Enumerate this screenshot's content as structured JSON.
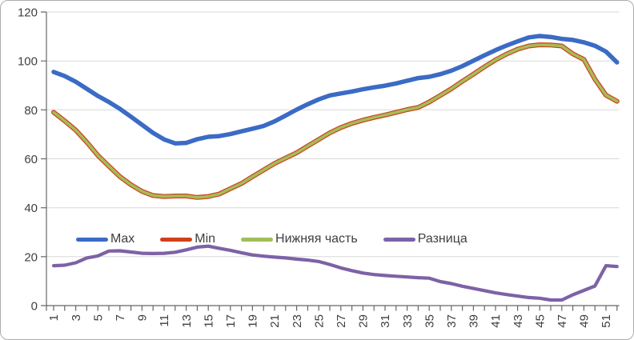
{
  "chart_data": {
    "type": "line",
    "x": [
      1,
      2,
      3,
      4,
      5,
      6,
      7,
      8,
      9,
      10,
      11,
      12,
      13,
      14,
      15,
      16,
      17,
      18,
      19,
      20,
      21,
      22,
      23,
      24,
      25,
      26,
      27,
      28,
      29,
      30,
      31,
      32,
      33,
      34,
      35,
      36,
      37,
      38,
      39,
      40,
      41,
      42,
      43,
      44,
      45,
      46,
      47,
      48,
      49,
      50,
      51,
      52
    ],
    "x_tick_labels": [
      "1",
      "3",
      "5",
      "7",
      "9",
      "11",
      "13",
      "15",
      "17",
      "19",
      "21",
      "23",
      "25",
      "27",
      "29",
      "31",
      "33",
      "35",
      "37",
      "39",
      "41",
      "43",
      "45",
      "47",
      "49",
      "51"
    ],
    "y_ticks": [
      0,
      20,
      40,
      60,
      80,
      100,
      120
    ],
    "ylim": [
      0,
      120
    ],
    "grid": "horizontal",
    "legend_position": "inside-lower-left-horizontal",
    "series": [
      {
        "name": "Max",
        "color": "#3A6BC5",
        "line_width": 5.5,
        "values": [
          95.5,
          93.8,
          91.5,
          88.6,
          85.7,
          83.2,
          80.4,
          77.2,
          73.9,
          70.6,
          67.9,
          66.3,
          66.5,
          68,
          69,
          69.3,
          70.1,
          71.2,
          72.3,
          73.4,
          75.3,
          77.7,
          80.1,
          82.3,
          84.3,
          85.9,
          86.7,
          87.5,
          88.4,
          89.2,
          89.9,
          90.8,
          91.9,
          93,
          93.5,
          94.6,
          96,
          97.9,
          100.1,
          102.3,
          104.4,
          106.3,
          108,
          109.6,
          110.2,
          109.8,
          109,
          108.6,
          107.6,
          106.2,
          103.8,
          99.4
        ]
      },
      {
        "name": "Min",
        "color": "#D0401A",
        "line_width": 6,
        "values": [
          79,
          75.5,
          71.7,
          66.8,
          61.4,
          57,
          52.7,
          49.4,
          46.7,
          45,
          44.6,
          44.8,
          44.8,
          44.2,
          44.6,
          45.6,
          47.8,
          49.9,
          52.7,
          55.4,
          58.1,
          60.3,
          62.5,
          65.2,
          67.9,
          70.6,
          72.8,
          74.5,
          75.8,
          76.9,
          77.9,
          79,
          80.1,
          81,
          83.2,
          85.9,
          88.6,
          91.7,
          94.6,
          97.6,
          100.4,
          102.8,
          104.8,
          106.1,
          106.6,
          106.5,
          106.1,
          102.9,
          100.6,
          92.5,
          86,
          83.5
        ]
      },
      {
        "name": "Нижняя часть",
        "color": "#A3BD5A",
        "line_width": 3.6,
        "values": [
          79,
          75.5,
          71.7,
          66.8,
          61.4,
          57,
          52.7,
          49.4,
          46.7,
          45,
          44.6,
          44.8,
          44.8,
          44.2,
          44.6,
          45.6,
          47.8,
          49.9,
          52.7,
          55.4,
          58.1,
          60.3,
          62.5,
          65.2,
          67.9,
          70.6,
          72.8,
          74.5,
          75.8,
          76.9,
          77.9,
          79,
          80.1,
          81,
          83.2,
          85.9,
          88.6,
          91.7,
          94.6,
          97.6,
          100.4,
          102.8,
          104.8,
          106.1,
          106.6,
          106.5,
          106.1,
          102.9,
          100.6,
          92.5,
          86,
          83.5
        ]
      },
      {
        "name": "Разница",
        "color": "#7D62A6",
        "line_width": 4.2,
        "values": [
          16.3,
          16.5,
          17.5,
          19.5,
          20.3,
          22.3,
          22.4,
          21.9,
          21.4,
          21.3,
          21.4,
          21.8,
          22.8,
          23.9,
          24.3,
          23.4,
          22.6,
          21.6,
          20.7,
          20.2,
          19.8,
          19.5,
          19,
          18.6,
          18,
          16.8,
          15.4,
          14.3,
          13.3,
          12.7,
          12.3,
          12,
          11.7,
          11.4,
          11.2,
          9.8,
          9,
          7.9,
          7,
          6.1,
          5.2,
          4.5,
          3.9,
          3.3,
          3,
          2.3,
          2.3,
          4.4,
          6.2,
          8,
          16.3,
          16
        ]
      }
    ],
    "colors": {
      "grid": "#D9D9D9",
      "axis": "#666666",
      "tick_label": "#3F3F3F",
      "background": "#FFFFFF",
      "border": "#ACACAC"
    }
  }
}
